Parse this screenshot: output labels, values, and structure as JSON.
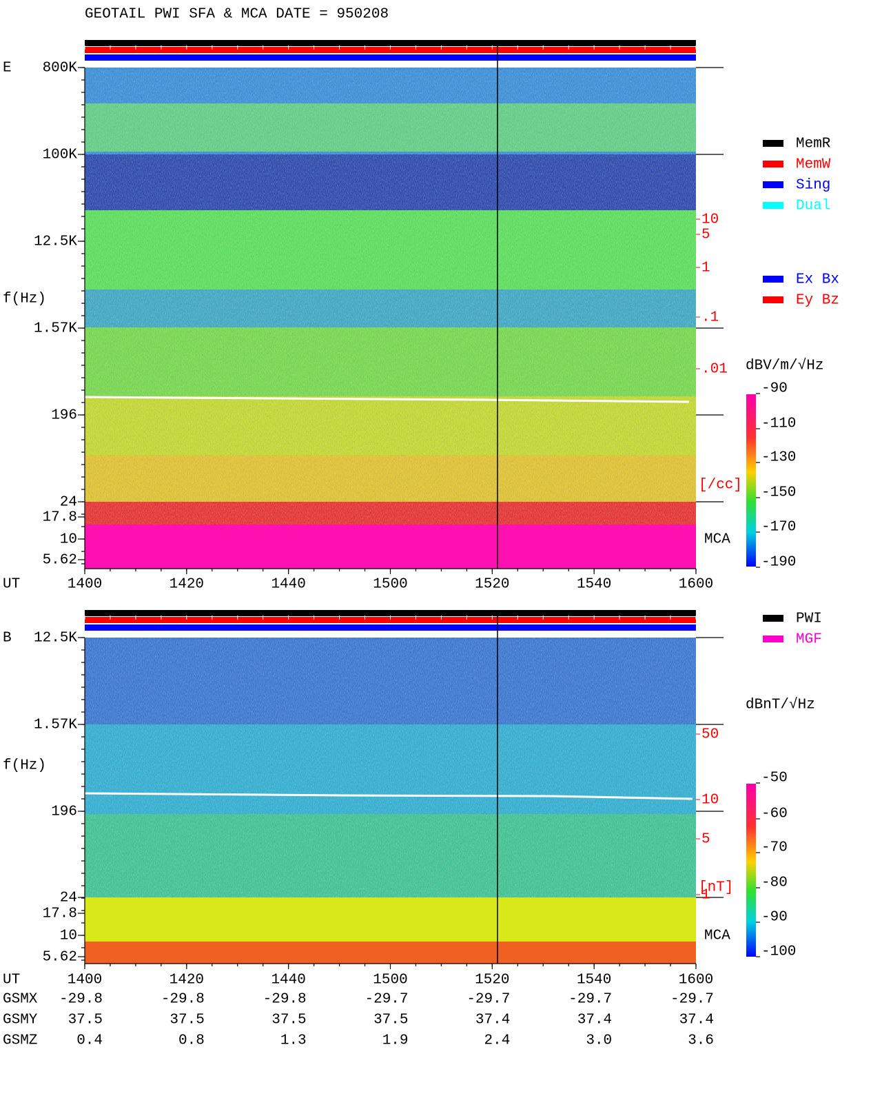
{
  "title": "GEOTAIL   PWI SFA & MCA   DATE = 950208",
  "mode_legend": [
    {
      "name": "MemR",
      "color": "#000000"
    },
    {
      "name": "MemW",
      "color": "#ff0000"
    },
    {
      "name": "Sing",
      "color": "#0000ff"
    },
    {
      "name": "Dual",
      "color": "#00ffff"
    }
  ],
  "component_legend": [
    {
      "name": "Ex Bx",
      "color": "#0000ff"
    },
    {
      "name": "Ey Bz",
      "color": "#ff0000"
    }
  ],
  "source_legend": [
    {
      "name": "PWI",
      "color": "#000000"
    },
    {
      "name": "MGF",
      "color": "#ff00cc"
    }
  ],
  "panels": [
    {
      "label": "E",
      "ylabel": "f(Hz)",
      "yticks": [
        "800K",
        "100K",
        "12.5K",
        "1.57K",
        "196",
        "24",
        "17.8",
        "10",
        "5.62"
      ],
      "density_ticks": [
        "10",
        "5",
        "1",
        ".1",
        ".01"
      ],
      "density_unit": "[/cc]",
      "mca": "MCA",
      "colorbar_unit": "dBV/m/√Hz",
      "colorbar_ticks": [
        "-90",
        "-110",
        "-130",
        "-150",
        "-170",
        "-190"
      ],
      "xlabel": "UT",
      "xticks": [
        "1400",
        "1420",
        "1440",
        "1500",
        "1520",
        "1540",
        "1600"
      ]
    },
    {
      "label": "B",
      "ylabel": "f(Hz)",
      "yticks": [
        "12.5K",
        "1.57K",
        "196",
        "24",
        "17.8",
        "10",
        "5.62"
      ],
      "density_ticks": [
        "50",
        "10",
        "5",
        "1"
      ],
      "density_unit": "[nT]",
      "mca": "MCA",
      "colorbar_unit": "dBnT/√Hz",
      "colorbar_ticks": [
        "-50",
        "-60",
        "-70",
        "-80",
        "-90",
        "-100"
      ],
      "xlabel": "UT",
      "xticks": [
        "1400",
        "1420",
        "1440",
        "1500",
        "1520",
        "1540",
        "1600"
      ]
    }
  ],
  "orbit": [
    {
      "label": "GSMX",
      "values": [
        "-29.8",
        "-29.8",
        "-29.8",
        "-29.7",
        "-29.7",
        "-29.7",
        "-29.7"
      ]
    },
    {
      "label": "GSMY",
      "values": [
        "37.5",
        "37.5",
        "37.5",
        "37.5",
        "37.4",
        "37.4",
        "37.4"
      ]
    },
    {
      "label": "GSMZ",
      "values": [
        "0.4",
        "0.8",
        "1.3",
        "1.9",
        "2.4",
        "3.0",
        "3.6"
      ]
    }
  ]
}
